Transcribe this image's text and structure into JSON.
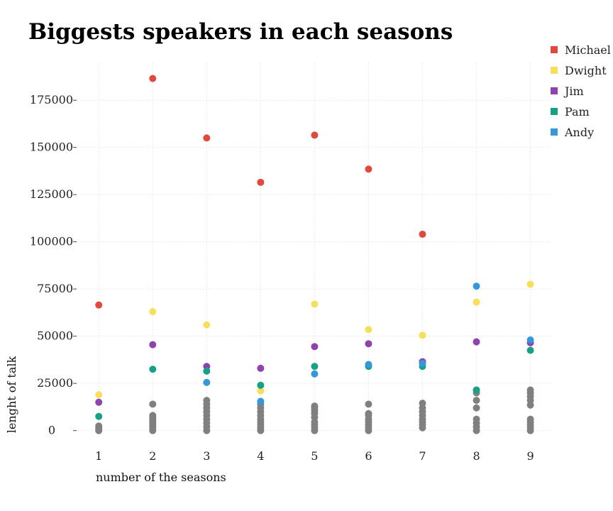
{
  "chart_data": {
    "type": "scatter",
    "title": "Biggests speakers in each seasons",
    "xlabel": "number of the seasons",
    "ylabel": "lenght of talk",
    "x_ticks": [
      1,
      2,
      3,
      4,
      5,
      6,
      7,
      8,
      9
    ],
    "y_ticks": [
      0,
      25000,
      50000,
      75000,
      100000,
      125000,
      150000,
      175000
    ],
    "xlim": [
      0.55,
      9.4
    ],
    "ylim": [
      -2000,
      195000
    ],
    "grid": true,
    "legend_position": "top-right",
    "other_color": "#808080",
    "series": [
      {
        "name": "Michael",
        "color": "#e04a3c",
        "points": [
          [
            1,
            66500
          ],
          [
            2,
            186500
          ],
          [
            3,
            155000
          ],
          [
            4,
            131500
          ],
          [
            5,
            156500
          ],
          [
            6,
            138500
          ],
          [
            7,
            104000
          ]
        ]
      },
      {
        "name": "Dwight",
        "color": "#f6e05a",
        "points": [
          [
            1,
            19000
          ],
          [
            2,
            63000
          ],
          [
            3,
            56000
          ],
          [
            4,
            21000
          ],
          [
            5,
            67000
          ],
          [
            6,
            53500
          ],
          [
            7,
            50500
          ],
          [
            8,
            68000
          ],
          [
            9,
            77500
          ]
        ]
      },
      {
        "name": "Jim",
        "color": "#8e44ad",
        "points": [
          [
            1,
            15000
          ],
          [
            2,
            45500
          ],
          [
            3,
            34000
          ],
          [
            4,
            33000
          ],
          [
            5,
            44500
          ],
          [
            6,
            46000
          ],
          [
            7,
            36500
          ],
          [
            8,
            47000
          ],
          [
            9,
            46500
          ]
        ]
      },
      {
        "name": "Pam",
        "color": "#16a085",
        "points": [
          [
            1,
            7500
          ],
          [
            2,
            32500
          ],
          [
            3,
            31500
          ],
          [
            4,
            24000
          ],
          [
            5,
            34000
          ],
          [
            6,
            34000
          ],
          [
            7,
            34000
          ],
          [
            8,
            21500
          ],
          [
            9,
            42500
          ]
        ]
      },
      {
        "name": "Andy",
        "color": "#3498db",
        "points": [
          [
            3,
            25500
          ],
          [
            4,
            15500
          ],
          [
            5,
            30000
          ],
          [
            6,
            35000
          ],
          [
            7,
            35500
          ],
          [
            8,
            76500
          ],
          [
            9,
            48000
          ]
        ]
      }
    ],
    "others": [
      {
        "x": 1,
        "values": [
          0,
          800,
          1600,
          2400
        ]
      },
      {
        "x": 2,
        "values": [
          0,
          1000,
          2000,
          3000,
          4000,
          5000,
          6000,
          7000,
          8000,
          14000
        ]
      },
      {
        "x": 3,
        "values": [
          0,
          2000,
          4000,
          6000,
          8000,
          10000,
          12000,
          14000,
          16000
        ]
      },
      {
        "x": 4,
        "values": [
          0,
          1500,
          3000,
          4500,
          6000,
          8000,
          10000,
          12000,
          14000
        ]
      },
      {
        "x": 5,
        "values": [
          0,
          1500,
          3000,
          4500,
          7000,
          9000,
          10500,
          12000,
          13000
        ]
      },
      {
        "x": 6,
        "values": [
          0,
          1500,
          3000,
          4500,
          6000,
          8000,
          9000,
          14000
        ]
      },
      {
        "x": 7,
        "values": [
          1500,
          3000,
          4500,
          6000,
          8000,
          10000,
          12000,
          14500
        ]
      },
      {
        "x": 8,
        "values": [
          0,
          2000,
          4000,
          6000,
          12000,
          16000,
          20000,
          21500
        ]
      },
      {
        "x": 9,
        "values": [
          0,
          1500,
          3000,
          4500,
          6000,
          13500,
          16000,
          18000,
          20000,
          21500
        ]
      }
    ]
  }
}
